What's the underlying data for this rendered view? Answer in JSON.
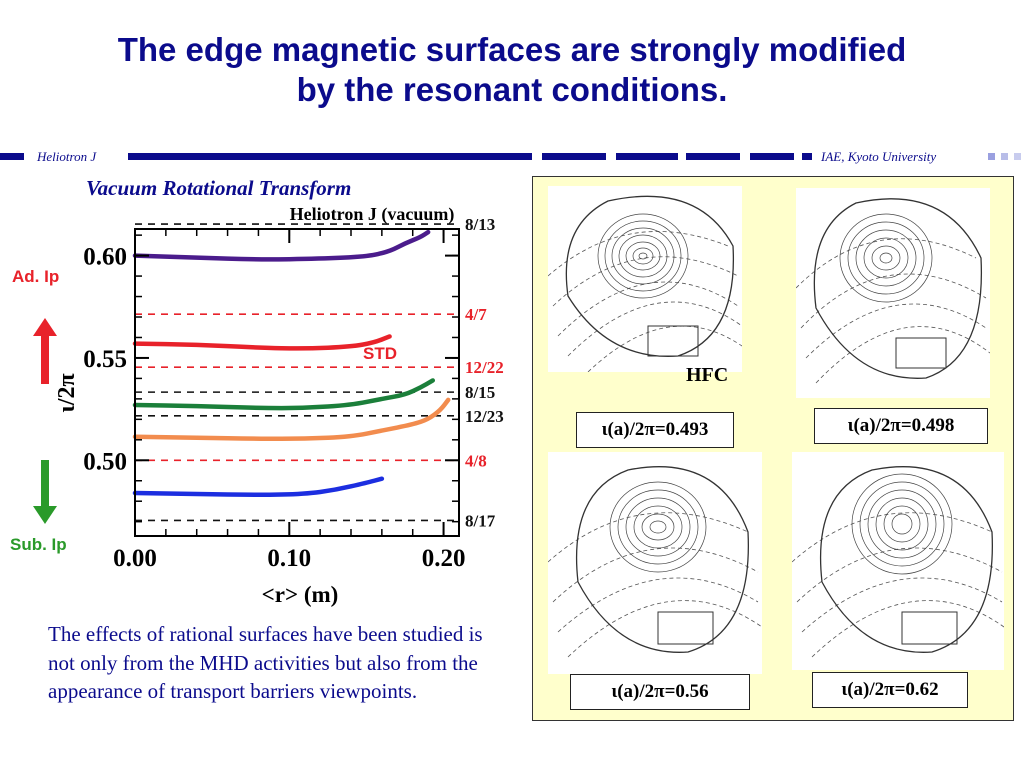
{
  "slide": {
    "title_line1": "The edge magnetic surfaces are strongly modified",
    "title_line2": "by the resonant conditions.",
    "footer_left": "Heliotron J",
    "footer_right": "IAE, Kyoto University",
    "subtitle": "Vacuum Rotational Transform",
    "ad_label": "Ad. Ip",
    "sub_label": "Sub. Ip",
    "body_text": "The effects of rational surfaces have been studied is not only from the MHD activities but also from the appearance of  transport barriers viewpoints.",
    "hfc_label": "HFC",
    "captions": [
      "ι(a)/2π=0.493",
      "ι(a)/2π=0.498",
      "ι(a)/2π=0.56",
      "ι(a)/2π=0.62"
    ],
    "colors": {
      "title": "#0b0b8c",
      "accent_red": "#e8222a",
      "accent_green": "#2a9a2a",
      "panel_bg": "#ffffcc"
    }
  },
  "chart_data": {
    "type": "line",
    "title": "Heliotron J (vacuum)",
    "xlabel": "<r> (m)",
    "ylabel": "ι/2π",
    "xlim": [
      0,
      0.21
    ],
    "ylim": [
      0.463,
      0.613
    ],
    "xticks": [
      0.0,
      0.1,
      0.2
    ],
    "xtick_labels": [
      "0.00",
      "0.10",
      "0.20"
    ],
    "yticks": [
      0.5,
      0.55,
      0.6
    ],
    "ytick_labels": [
      "0.50",
      "0.55",
      "0.60"
    ],
    "std_label": "STD",
    "series": [
      {
        "color": "#4b1c8c",
        "x": [
          0.0,
          0.04,
          0.08,
          0.12,
          0.15,
          0.165,
          0.175,
          0.185,
          0.19
        ],
        "y": [
          0.6,
          0.599,
          0.598,
          0.5985,
          0.5995,
          0.602,
          0.606,
          0.609,
          0.6115
        ]
      },
      {
        "color": "#e8222a",
        "x": [
          0.0,
          0.04,
          0.08,
          0.11,
          0.14,
          0.155,
          0.165
        ],
        "y": [
          0.557,
          0.5565,
          0.555,
          0.5545,
          0.5555,
          0.5575,
          0.5605
        ]
      },
      {
        "color": "#1b7f3a",
        "x": [
          0.0,
          0.04,
          0.08,
          0.11,
          0.14,
          0.16,
          0.175,
          0.185,
          0.193
        ],
        "y": [
          0.527,
          0.5265,
          0.5255,
          0.5255,
          0.527,
          0.53,
          0.532,
          0.5355,
          0.539
        ]
      },
      {
        "color": "#f28c4e",
        "x": [
          0.0,
          0.04,
          0.08,
          0.11,
          0.14,
          0.16,
          0.18,
          0.19,
          0.198,
          0.203
        ],
        "y": [
          0.5115,
          0.511,
          0.5105,
          0.5105,
          0.5115,
          0.5145,
          0.5175,
          0.52,
          0.5245,
          0.5295
        ]
      },
      {
        "color": "#1c2ee0",
        "x": [
          0.0,
          0.04,
          0.08,
          0.11,
          0.13,
          0.15,
          0.16
        ],
        "y": [
          0.484,
          0.4835,
          0.483,
          0.4835,
          0.4855,
          0.489,
          0.491
        ]
      }
    ],
    "reference_lines": [
      {
        "label": "8/13",
        "y": 0.6154,
        "color": "#111111"
      },
      {
        "label": "4/7",
        "y": 0.5714,
        "color": "#e8222a"
      },
      {
        "label": "12/22",
        "y": 0.5455,
        "color": "#e8222a"
      },
      {
        "label": "8/15",
        "y": 0.5333,
        "color": "#111111"
      },
      {
        "label": "12/23",
        "y": 0.5217,
        "color": "#111111"
      },
      {
        "label": "4/8",
        "y": 0.5,
        "color": "#e8222a"
      },
      {
        "label": "8/17",
        "y": 0.4706,
        "color": "#111111"
      }
    ]
  }
}
